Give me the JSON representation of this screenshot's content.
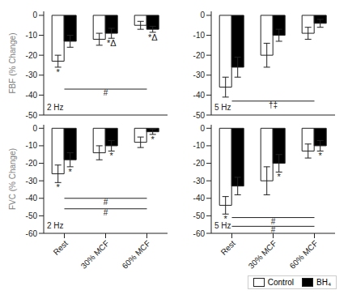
{
  "chart_data": [
    {
      "type": "bar",
      "categories": [
        "Rest",
        "30% MCF",
        "60% MCF"
      ],
      "y_label": "FBF (% Change)",
      "tick_labels": "y",
      "series": [
        {
          "name": "Control",
          "color": "white",
          "values": [
            -23,
            -12,
            -5
          ],
          "errors": [
            3,
            3,
            2
          ]
        },
        {
          "name": "BH₄",
          "color": "black",
          "values": [
            -13,
            -9,
            -7
          ],
          "errors": [
            3,
            2.5,
            1.5
          ]
        }
      ],
      "ylim": [
        -50,
        2
      ],
      "yticks": [
        0,
        -10,
        -20,
        -30,
        -40,
        -50
      ],
      "annotations": [
        {
          "text": "*",
          "category": "Rest",
          "series": "Control"
        },
        {
          "text": "*Δ",
          "category": "30% MCF",
          "series": "BH₄"
        },
        {
          "text": "*Δ",
          "category": "60% MCF",
          "series": "BH₄"
        },
        {
          "text": "#",
          "y": -37,
          "from": "Rest",
          "to": "60% MCF"
        },
        {
          "text": "2 Hz"
        }
      ]
    },
    {
      "type": "bar",
      "categories": [
        "Rest",
        "30% MCF",
        "60% MCF"
      ],
      "tick_labels": "y",
      "series": [
        {
          "name": "Control",
          "color": "white",
          "values": [
            -36,
            -20,
            -9
          ],
          "errors": [
            5,
            6,
            3
          ]
        },
        {
          "name": "BH₄",
          "color": "black",
          "values": [
            -26,
            -10,
            -4
          ],
          "errors": [
            5,
            3,
            2
          ]
        }
      ],
      "ylim": [
        -50,
        2
      ],
      "yticks": [
        0,
        -10,
        -20,
        -30,
        -40,
        -50
      ],
      "annotations": [
        {
          "text": "†‡",
          "y": -43,
          "from": "Rest",
          "to": "60% MCF"
        },
        {
          "text": "5 Hz"
        }
      ]
    },
    {
      "type": "bar",
      "categories": [
        "Rest",
        "30% MCF",
        "60% MCF"
      ],
      "y_label": "FVC (% Change)",
      "series": [
        {
          "name": "Control",
          "color": "white",
          "values": [
            -26,
            -14,
            -8
          ],
          "errors": [
            5,
            4,
            3
          ]
        },
        {
          "name": "BH₄",
          "color": "black",
          "values": [
            -18,
            -10,
            -2
          ],
          "errors": [
            4,
            3,
            1.5
          ]
        }
      ],
      "ylim": [
        -60,
        2
      ],
      "yticks": [
        0,
        -10,
        -20,
        -30,
        -40,
        -50,
        -60
      ],
      "annotations": [
        {
          "text": "*",
          "category": "Rest",
          "series": "Control"
        },
        {
          "text": "*",
          "category": "Rest",
          "series": "BH₄"
        },
        {
          "text": "*",
          "category": "30% MCF",
          "series": "BH₄"
        },
        {
          "text": "*",
          "category": "60% MCF",
          "series": "BH₄"
        },
        {
          "text": "#",
          "y": -40,
          "from": "Rest",
          "to": "60% MCF"
        },
        {
          "text": "#",
          "y": -46,
          "from": "Rest",
          "to": "60% MCF"
        },
        {
          "text": "2 Hz"
        }
      ]
    },
    {
      "type": "bar",
      "categories": [
        "Rest",
        "30% MCF",
        "60% MCF"
      ],
      "legend": "lower right",
      "series": [
        {
          "name": "Control",
          "color": "white",
          "values": [
            -44,
            -30,
            -13
          ],
          "errors": [
            5,
            8,
            4
          ]
        },
        {
          "name": "BH₄",
          "color": "black",
          "values": [
            -33,
            -20,
            -10
          ],
          "errors": [
            5,
            5,
            3
          ]
        }
      ],
      "ylim": [
        -60,
        2
      ],
      "yticks": [
        0,
        -10,
        -20,
        -30,
        -40,
        -50,
        -60
      ],
      "annotations": [
        {
          "text": "*",
          "category": "Rest",
          "series": "Control"
        },
        {
          "text": "*",
          "category": "30% MCF",
          "series": "BH₄"
        },
        {
          "text": "*",
          "category": "60% MCF",
          "series": "BH₄"
        },
        {
          "text": "#",
          "y": -51,
          "from": "Rest",
          "to": "60% MCF"
        },
        {
          "text": "#",
          "y": -56,
          "from": "Rest",
          "to": "60% MCF"
        },
        {
          "text": "5 Hz"
        }
      ]
    }
  ]
}
